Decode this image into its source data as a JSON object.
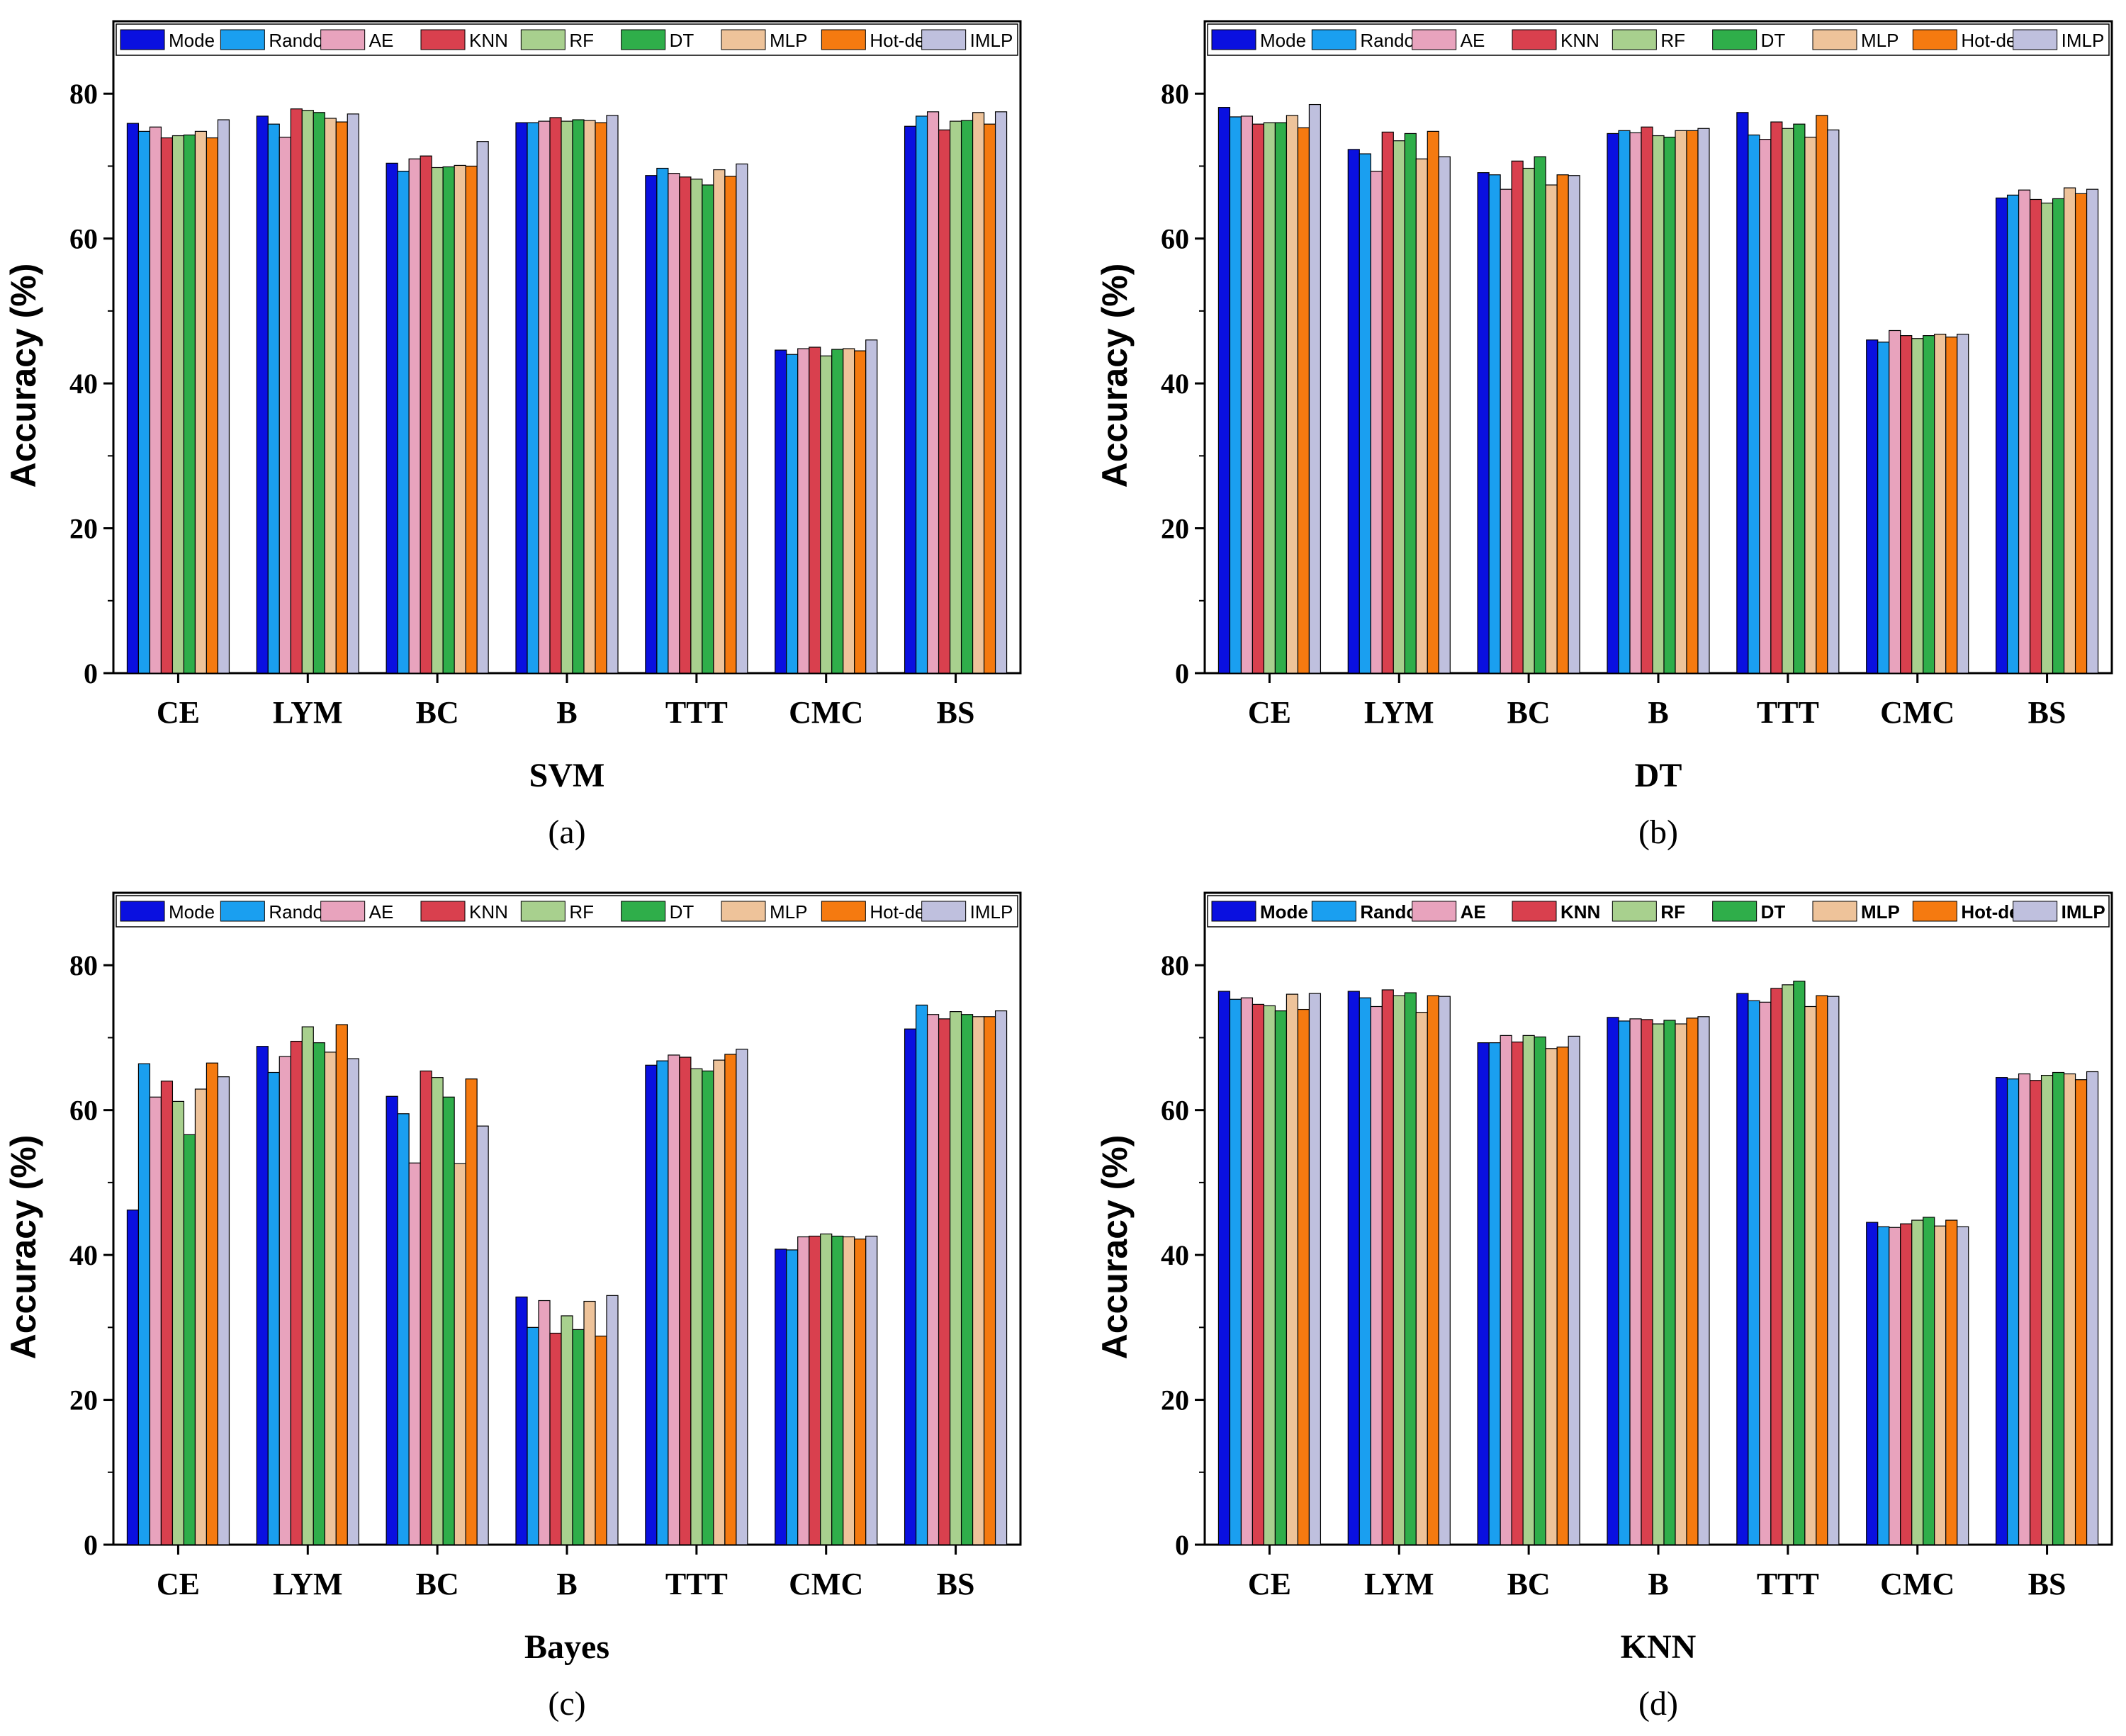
{
  "figure": {
    "legend_entries": [
      "Mode",
      "Random",
      "AE",
      "KNN",
      "RF",
      "DT",
      "MLP",
      "Hot-deck",
      "IMLP"
    ],
    "series_colors": [
      "#0a10e0",
      "#1a9ff0",
      "#e8a3bd",
      "#d9404e",
      "#a8d08e",
      "#2fae4a",
      "#eec39a",
      "#f57a10",
      "#bfc0de"
    ]
  },
  "chart_data": [
    {
      "type": "bar",
      "panel_label": "(a)",
      "title": "SVM",
      "xlabel": "SVM",
      "ylabel": "Accuracy (%)",
      "ylim": [
        0,
        90
      ],
      "yticks": [
        0,
        20,
        40,
        60,
        80
      ],
      "categories": [
        "CE",
        "LYM",
        "BC",
        "B",
        "TTT",
        "CMC",
        "BS"
      ],
      "legend_position": "top",
      "series": [
        {
          "name": "Mode",
          "values": [
            75.9,
            76.9,
            70.4,
            76.0,
            68.7,
            44.6,
            75.5
          ]
        },
        {
          "name": "Random",
          "values": [
            74.8,
            75.8,
            69.3,
            76.0,
            69.7,
            44.0,
            76.9
          ]
        },
        {
          "name": "AE",
          "values": [
            75.4,
            74.0,
            71.0,
            76.2,
            69.0,
            44.8,
            77.5
          ]
        },
        {
          "name": "KNN",
          "values": [
            73.9,
            77.9,
            71.4,
            76.7,
            68.5,
            45.0,
            75.0
          ]
        },
        {
          "name": "RF",
          "values": [
            74.2,
            77.7,
            69.8,
            76.2,
            68.2,
            43.8,
            76.2
          ]
        },
        {
          "name": "DT",
          "values": [
            74.3,
            77.4,
            69.9,
            76.4,
            67.4,
            44.7,
            76.3
          ]
        },
        {
          "name": "MLP",
          "values": [
            74.8,
            76.6,
            70.1,
            76.3,
            69.5,
            44.8,
            77.4
          ]
        },
        {
          "name": "Hot-deck",
          "values": [
            73.9,
            76.1,
            70.0,
            76.0,
            68.6,
            44.5,
            75.8
          ]
        },
        {
          "name": "IMLP",
          "values": [
            76.4,
            77.2,
            73.4,
            77.0,
            70.3,
            46.0,
            77.5
          ]
        }
      ]
    },
    {
      "type": "bar",
      "panel_label": "(b)",
      "title": "DT",
      "xlabel": "DT",
      "ylabel": "Accuracy (%)",
      "ylim": [
        0,
        90
      ],
      "yticks": [
        0,
        20,
        40,
        60,
        80
      ],
      "categories": [
        "CE",
        "LYM",
        "BC",
        "B",
        "TTT",
        "CMC",
        "BS"
      ],
      "legend_position": "top",
      "series": [
        {
          "name": "Mode",
          "values": [
            78.1,
            72.3,
            69.1,
            74.5,
            77.4,
            46.0,
            65.6
          ]
        },
        {
          "name": "Random",
          "values": [
            76.8,
            71.7,
            68.8,
            74.9,
            74.3,
            45.7,
            66.0
          ]
        },
        {
          "name": "AE",
          "values": [
            76.9,
            69.3,
            66.8,
            74.6,
            73.7,
            47.3,
            66.7
          ]
        },
        {
          "name": "KNN",
          "values": [
            75.8,
            74.7,
            70.7,
            75.4,
            76.1,
            46.6,
            65.4
          ]
        },
        {
          "name": "RF",
          "values": [
            76.0,
            73.5,
            69.7,
            74.2,
            75.2,
            46.2,
            64.9
          ]
        },
        {
          "name": "DT",
          "values": [
            76.0,
            74.5,
            71.3,
            74.0,
            75.8,
            46.6,
            65.5
          ]
        },
        {
          "name": "MLP",
          "values": [
            77.0,
            71.0,
            67.4,
            74.9,
            74.0,
            46.8,
            67.0
          ]
        },
        {
          "name": "Hot-deck",
          "values": [
            75.3,
            74.8,
            68.8,
            74.9,
            77.0,
            46.4,
            66.2
          ]
        },
        {
          "name": "IMLP",
          "values": [
            78.5,
            71.3,
            68.7,
            75.2,
            75.0,
            46.8,
            66.8
          ]
        }
      ]
    },
    {
      "type": "bar",
      "panel_label": "(c)",
      "title": "Bayes",
      "xlabel": "Bayes",
      "ylabel": "Accuracy (%)",
      "ylim": [
        0,
        90
      ],
      "yticks": [
        0,
        20,
        40,
        60,
        80
      ],
      "categories": [
        "CE",
        "LYM",
        "BC",
        "B",
        "TTT",
        "CMC",
        "BS"
      ],
      "legend_position": "top",
      "series": [
        {
          "name": "Mode",
          "values": [
            46.2,
            68.8,
            61.9,
            34.2,
            66.2,
            40.8,
            71.2
          ]
        },
        {
          "name": "Random",
          "values": [
            66.4,
            65.2,
            59.5,
            30.0,
            66.8,
            40.7,
            74.5
          ]
        },
        {
          "name": "AE",
          "values": [
            61.8,
            67.4,
            52.7,
            33.7,
            67.6,
            42.5,
            73.2
          ]
        },
        {
          "name": "KNN",
          "values": [
            64.0,
            69.5,
            65.4,
            29.2,
            67.3,
            42.6,
            72.6
          ]
        },
        {
          "name": "RF",
          "values": [
            61.2,
            71.5,
            64.5,
            31.6,
            65.7,
            42.9,
            73.6
          ]
        },
        {
          "name": "DT",
          "values": [
            56.6,
            69.3,
            61.8,
            29.7,
            65.4,
            42.6,
            73.2
          ]
        },
        {
          "name": "MLP",
          "values": [
            62.9,
            68.0,
            52.6,
            33.6,
            66.9,
            42.5,
            72.9
          ]
        },
        {
          "name": "Hot-deck",
          "values": [
            66.5,
            71.8,
            64.3,
            28.8,
            67.7,
            42.2,
            72.9
          ]
        },
        {
          "name": "IMLP",
          "values": [
            64.6,
            67.1,
            57.8,
            34.4,
            68.4,
            42.6,
            73.7
          ]
        }
      ]
    },
    {
      "type": "bar",
      "panel_label": "(d)",
      "title": "KNN",
      "xlabel": "KNN",
      "ylabel": "Accuracy (%)",
      "ylim": [
        0,
        90
      ],
      "yticks": [
        0,
        20,
        40,
        60,
        80
      ],
      "categories": [
        "CE",
        "LYM",
        "BC",
        "B",
        "TTT",
        "CMC",
        "BS"
      ],
      "legend_position": "top",
      "series": [
        {
          "name": "Mode",
          "values": [
            76.4,
            76.4,
            69.3,
            72.8,
            76.1,
            44.5,
            64.5
          ]
        },
        {
          "name": "Random",
          "values": [
            75.3,
            75.5,
            69.3,
            72.3,
            75.1,
            43.9,
            64.3
          ]
        },
        {
          "name": "AE",
          "values": [
            75.5,
            74.3,
            70.3,
            72.6,
            74.9,
            43.8,
            65.0
          ]
        },
        {
          "name": "KNN",
          "values": [
            74.6,
            76.6,
            69.4,
            72.5,
            76.8,
            44.3,
            64.1
          ]
        },
        {
          "name": "RF",
          "values": [
            74.4,
            75.8,
            70.3,
            71.9,
            77.3,
            44.8,
            64.8
          ]
        },
        {
          "name": "DT",
          "values": [
            73.7,
            76.2,
            70.1,
            72.4,
            77.8,
            45.2,
            65.2
          ]
        },
        {
          "name": "MLP",
          "values": [
            76.0,
            73.5,
            68.5,
            71.9,
            74.3,
            44.0,
            65.0
          ]
        },
        {
          "name": "Hot-deck",
          "values": [
            73.9,
            75.8,
            68.7,
            72.7,
            75.8,
            44.8,
            64.2
          ]
        },
        {
          "name": "IMLP",
          "values": [
            76.1,
            75.7,
            70.2,
            72.9,
            75.7,
            43.9,
            65.3
          ]
        }
      ]
    }
  ]
}
